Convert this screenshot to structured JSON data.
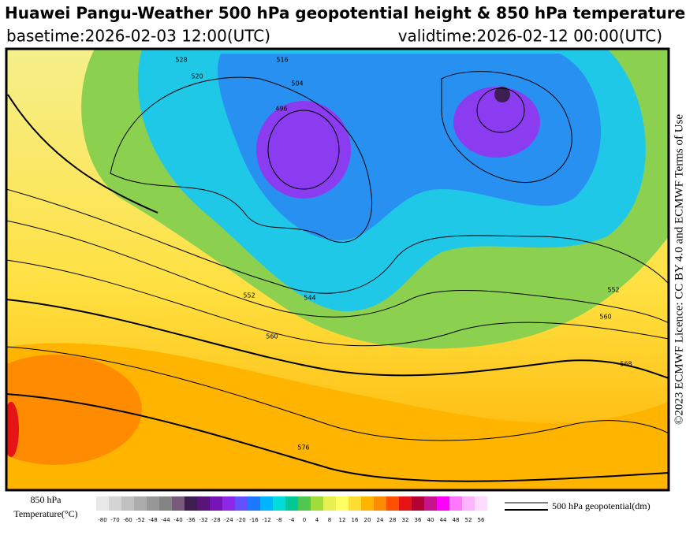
{
  "header": {
    "title": "Huawei Pangu-Weather 500 hPa geopotential height & 850 hPa temperature",
    "basetime": "basetime:2026-02-03 12:00(UTC)",
    "validtime": "validtime:2026-02-12 00:00(UTC)"
  },
  "license": "©2023 ECMWF Licence: CC BY 4.0 and ECMWF Terms of Use",
  "map": {
    "contour_labels": [
      528,
      520,
      504,
      496,
      516,
      552,
      544,
      560,
      576,
      560,
      552,
      568
    ]
  },
  "legend": {
    "temperature_title": "850 hPa",
    "temperature_unit": "Temperature(°C)",
    "colorbar": {
      "labels": [
        -80,
        -70,
        -60,
        -52,
        -48,
        -44,
        -40,
        -36,
        -32,
        -28,
        -24,
        -20,
        -16,
        -12,
        -8,
        -4,
        0,
        4,
        8,
        12,
        16,
        20,
        24,
        28,
        32,
        36,
        40,
        44,
        48,
        52,
        56
      ],
      "colors": [
        "#e8e8e8",
        "#d4d4d4",
        "#c0c0c0",
        "#acacac",
        "#989898",
        "#848484",
        "#7a5a7a",
        "#3c1e50",
        "#5a1478",
        "#7814b4",
        "#8c28e6",
        "#6450ff",
        "#1e78ff",
        "#00b4ff",
        "#00dcdc",
        "#00c896",
        "#50c850",
        "#a0dc3c",
        "#e6f050",
        "#ffff64",
        "#ffdc32",
        "#ffb400",
        "#ff8c00",
        "#ff5000",
        "#e61414",
        "#b40032",
        "#c8148c",
        "#ff00ff",
        "#ff78ff",
        "#ffb4ff",
        "#ffdcff"
      ]
    },
    "geopotential": "500 hPa geopotential(dm)"
  }
}
